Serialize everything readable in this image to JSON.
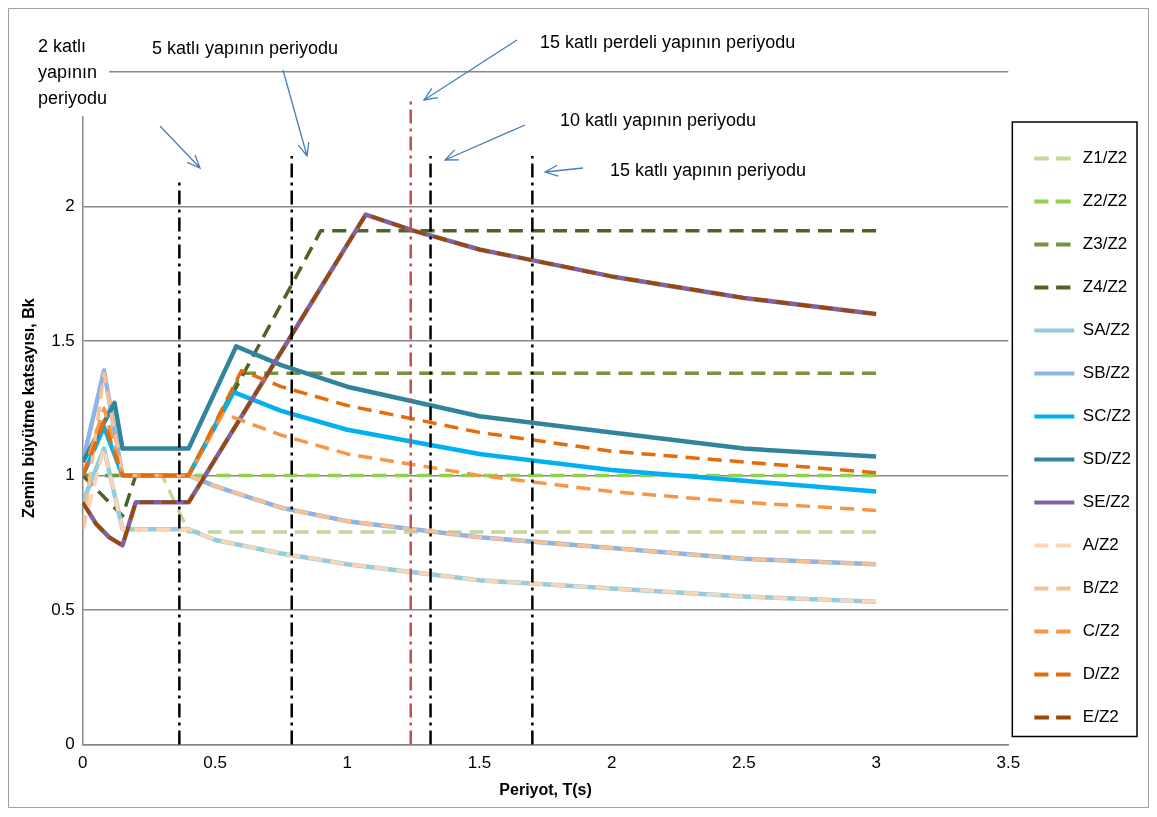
{
  "chart_data": {
    "type": "line",
    "xlabel": "Periyot, T(s)",
    "ylabel": "Zemin büyütme katsayısı, Bk",
    "xlim": [
      0,
      3.5
    ],
    "xticks": [
      0,
      0.5,
      1,
      1.5,
      2,
      2.5,
      3,
      3.5
    ],
    "ylim": [
      0,
      2.5
    ],
    "yticks": [
      0,
      0.5,
      1,
      1.5,
      2,
      {
        "value": 2.5,
        "label": null
      }
    ],
    "grid": "y",
    "legend": "right",
    "marker": "none",
    "series": [
      {
        "name": "Z1/Z2",
        "color": "#c4d79b",
        "line_style": "dashed",
        "x": [
          0,
          0.1,
          0.15,
          0.3,
          0.4,
          3
        ],
        "values": [
          1,
          1.25,
          1,
          1,
          0.79,
          0.79
        ]
      },
      {
        "name": "Z2/Z2",
        "color": "#92d050",
        "line_style": "dashed",
        "x": [
          0,
          3
        ],
        "values": [
          1,
          1
        ]
      },
      {
        "name": "Z3/Z2",
        "color": "#77933c",
        "line_style": "dashed",
        "x": [
          0,
          0.4,
          0.6,
          3
        ],
        "values": [
          1,
          1,
          1.38,
          1.38
        ]
      },
      {
        "name": "Z4/Z2",
        "color": "#4f6228",
        "line_style": "dashed",
        "x": [
          0,
          0.15,
          0.2,
          0.4,
          0.9,
          3
        ],
        "values": [
          1,
          0.85,
          1,
          1,
          1.91,
          1.91
        ]
      },
      {
        "name": "SA/Z2",
        "color": "#93cddd",
        "line_style": "solid",
        "x": [
          0,
          0.08,
          0.15,
          0.4,
          0.5,
          0.75,
          1,
          1.5,
          2,
          2.5,
          3
        ],
        "values": [
          0.9,
          1.1,
          0.8,
          0.8,
          0.76,
          0.71,
          0.67,
          0.61,
          0.58,
          0.55,
          0.53
        ]
      },
      {
        "name": "SB/Z2",
        "color": "#8eb4e3",
        "line_style": "solid",
        "x": [
          0,
          0.08,
          0.15,
          0.4,
          0.5,
          0.75,
          1,
          1.5,
          2,
          2.5,
          3
        ],
        "values": [
          1.05,
          1.39,
          1,
          1,
          0.96,
          0.88,
          0.83,
          0.77,
          0.73,
          0.69,
          0.67
        ]
      },
      {
        "name": "SC/Z2",
        "color": "#00b0f0",
        "line_style": "solid",
        "x": [
          0,
          0.08,
          0.15,
          0.4,
          0.57,
          0.75,
          1,
          1.5,
          2,
          2.5,
          3
        ],
        "values": [
          1,
          1.18,
          1,
          1,
          1.31,
          1.24,
          1.17,
          1.08,
          1.02,
          0.98,
          0.94
        ]
      },
      {
        "name": "SD/Z2",
        "color": "#31849b",
        "line_style": "solid",
        "x": [
          0,
          0.12,
          0.15,
          0.4,
          0.58,
          0.75,
          1,
          1.5,
          2,
          2.5,
          3
        ],
        "values": [
          1.05,
          1.27,
          1.1,
          1.1,
          1.48,
          1.41,
          1.33,
          1.22,
          1.16,
          1.1,
          1.07
        ]
      },
      {
        "name": "SE/Z2",
        "color": "#8064a2",
        "line_style": "solid",
        "x": [
          0,
          0.05,
          0.1,
          0.15,
          0.2,
          0.4,
          1.07,
          1.25,
          1.5,
          2,
          2.5,
          3
        ],
        "values": [
          0.9,
          0.82,
          0.77,
          0.74,
          0.9,
          0.9,
          1.97,
          1.91,
          1.84,
          1.74,
          1.66,
          1.6
        ]
      },
      {
        "name": "A/Z2",
        "color": "#fcd5b5",
        "line_style": "dashed",
        "x": [
          0,
          0.08,
          0.15,
          0.4,
          0.5,
          0.75,
          1,
          1.5,
          2,
          2.5,
          3
        ],
        "values": [
          0.8,
          1.1,
          0.8,
          0.8,
          0.76,
          0.71,
          0.67,
          0.61,
          0.58,
          0.55,
          0.53
        ]
      },
      {
        "name": "B/Z2",
        "color": "#fac090",
        "line_style": "dashed",
        "x": [
          0,
          0.08,
          0.15,
          0.4,
          0.5,
          0.75,
          1,
          1.5,
          2,
          2.5,
          3
        ],
        "values": [
          0.8,
          1.38,
          1,
          1,
          0.96,
          0.88,
          0.83,
          0.77,
          0.73,
          0.69,
          0.67
        ]
      },
      {
        "name": "C/Z2",
        "color": "#f79646",
        "line_style": "dashed",
        "x": [
          0,
          0.08,
          0.15,
          0.4,
          0.53,
          0.75,
          1,
          1.5,
          2,
          2.5,
          3
        ],
        "values": [
          1,
          1.25,
          1,
          1,
          1.23,
          1.15,
          1.08,
          1,
          0.94,
          0.9,
          0.87
        ]
      },
      {
        "name": "D/Z2",
        "color": "#e46c0a",
        "line_style": "dashed",
        "x": [
          0,
          0.08,
          0.15,
          0.4,
          0.6,
          0.75,
          1,
          1.5,
          2,
          2.5,
          3
        ],
        "values": [
          1,
          1.2,
          1,
          1,
          1.39,
          1.33,
          1.26,
          1.16,
          1.09,
          1.05,
          1.01
        ]
      },
      {
        "name": "E/Z2",
        "color": "#984807",
        "line_style": "dashed",
        "x": [
          0,
          0.05,
          0.1,
          0.15,
          0.2,
          0.4,
          1.07,
          1.25,
          1.5,
          2,
          2.5,
          3
        ],
        "values": [
          0.9,
          0.82,
          0.77,
          0.74,
          0.9,
          0.9,
          1.97,
          1.91,
          1.84,
          1.74,
          1.66,
          1.6
        ]
      }
    ],
    "ref_lines": [
      {
        "axis": "x",
        "value": 0.365,
        "color": "#000000",
        "line_style": "dashed"
      },
      {
        "axis": "x",
        "value": 0.79,
        "color": "#000000",
        "line_style": "dashed"
      },
      {
        "axis": "x",
        "value": 1.24,
        "color": "#c0504d",
        "line_style": "dashed"
      },
      {
        "axis": "x",
        "value": 1.315,
        "color": "#000000",
        "line_style": "dashed"
      },
      {
        "axis": "x",
        "value": 1.7,
        "color": "#000000",
        "line_style": "dashed"
      }
    ],
    "annotations": [
      "2 katlı yapının periyodu",
      "5 katlı yapının periyodu",
      "15 katlı perdeli yapının periyodu",
      "10 katlı yapının periyodu",
      "15 katlı yapının periyodu"
    ]
  }
}
